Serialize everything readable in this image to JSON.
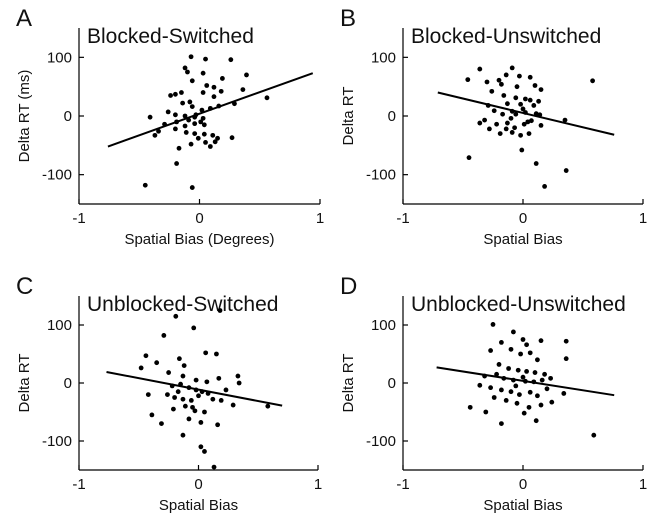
{
  "chart_data": [
    {
      "panel": "A",
      "type": "scatter",
      "title": "Blocked-Switched",
      "xlabel": "Spatial Bias (Degrees)",
      "ylabel": "Delta RT  (ms)",
      "xlim": [
        -1,
        1
      ],
      "ylim": [
        -150,
        150
      ],
      "xticks": [
        "-1",
        "0",
        "1"
      ],
      "yticks": [
        "-100",
        "0",
        "100"
      ],
      "points": [
        [
          -0.45,
          -118
        ],
        [
          -0.06,
          -122
        ],
        [
          -0.07,
          101
        ],
        [
          -0.12,
          82
        ],
        [
          -0.1,
          75
        ],
        [
          0.05,
          97
        ],
        [
          0.03,
          73
        ],
        [
          0.26,
          96
        ],
        [
          0.39,
          70
        ],
        [
          0.19,
          64
        ],
        [
          -0.06,
          60
        ],
        [
          -0.2,
          37
        ],
        [
          -0.24,
          35
        ],
        [
          -0.15,
          40
        ],
        [
          0.06,
          52
        ],
        [
          0.12,
          49
        ],
        [
          0.03,
          40
        ],
        [
          0.36,
          45
        ],
        [
          0.18,
          42
        ],
        [
          0.12,
          33
        ],
        [
          -0.08,
          24
        ],
        [
          -0.14,
          22
        ],
        [
          -0.06,
          16
        ],
        [
          0.02,
          10
        ],
        [
          0.09,
          13
        ],
        [
          0.29,
          21
        ],
        [
          0.16,
          17
        ],
        [
          0.56,
          31
        ],
        [
          -0.26,
          7
        ],
        [
          -0.2,
          2
        ],
        [
          -0.12,
          0
        ],
        [
          -0.04,
          -2
        ],
        [
          0.03,
          -4
        ],
        [
          -0.03,
          2
        ],
        [
          -0.29,
          -14
        ],
        [
          -0.37,
          -33
        ],
        [
          -0.19,
          -10
        ],
        [
          -0.09,
          -7
        ],
        [
          -0.04,
          -13
        ],
        [
          0.04,
          -15
        ],
        [
          -0.41,
          -2
        ],
        [
          -0.34,
          -26
        ],
        [
          -0.2,
          -22
        ],
        [
          -0.11,
          -28
        ],
        [
          -0.04,
          -30
        ],
        [
          0.04,
          -31
        ],
        [
          0.11,
          -33
        ],
        [
          0.13,
          -44
        ],
        [
          0.05,
          -45
        ],
        [
          0.09,
          -52
        ],
        [
          0.15,
          -38
        ],
        [
          0.27,
          -37
        ],
        [
          -0.01,
          -38
        ],
        [
          -0.07,
          -48
        ],
        [
          -0.17,
          -55
        ],
        [
          -0.19,
          -81
        ],
        [
          -0.12,
          -17
        ],
        [
          0.01,
          -10
        ]
      ],
      "fit_line": {
        "x": [
          -0.76,
          0.94
        ],
        "y": [
          -52,
          73
        ]
      }
    },
    {
      "panel": "B",
      "type": "scatter",
      "title": "Blocked-Unswitched",
      "xlabel": "Spatial Bias",
      "ylabel": "Delta RT",
      "xlim": [
        -1,
        1
      ],
      "ylim": [
        -150,
        150
      ],
      "xticks": [
        "-1",
        "0",
        "1"
      ],
      "yticks": [
        "-100",
        "0",
        "100"
      ],
      "points": [
        [
          -0.36,
          80
        ],
        [
          -0.46,
          62
        ],
        [
          -0.09,
          82
        ],
        [
          -0.14,
          70
        ],
        [
          -0.03,
          68
        ],
        [
          0.06,
          66
        ],
        [
          -0.2,
          61
        ],
        [
          -0.3,
          58
        ],
        [
          -0.18,
          54
        ],
        [
          -0.05,
          50
        ],
        [
          0.1,
          52
        ],
        [
          0.15,
          45
        ],
        [
          0.58,
          60
        ],
        [
          -0.26,
          42
        ],
        [
          -0.16,
          35
        ],
        [
          -0.06,
          31
        ],
        [
          0.02,
          29
        ],
        [
          0.06,
          27
        ],
        [
          0.13,
          25
        ],
        [
          -0.13,
          21
        ],
        [
          -0.29,
          18
        ],
        [
          -0.02,
          20
        ],
        [
          0.09,
          18
        ],
        [
          -0.24,
          9
        ],
        [
          -0.17,
          3
        ],
        [
          -0.09,
          8
        ],
        [
          0.02,
          6
        ],
        [
          0.11,
          4
        ],
        [
          0.14,
          2
        ],
        [
          -0.32,
          -7
        ],
        [
          -0.22,
          -14
        ],
        [
          -0.13,
          -12
        ],
        [
          -0.07,
          -20
        ],
        [
          0.01,
          -14
        ],
        [
          0.07,
          -8
        ],
        [
          0.15,
          -16
        ],
        [
          0.35,
          -7
        ],
        [
          -0.36,
          -12
        ],
        [
          -0.28,
          -22
        ],
        [
          -0.19,
          -30
        ],
        [
          -0.09,
          -28
        ],
        [
          -0.02,
          -33
        ],
        [
          0.05,
          -30
        ],
        [
          -0.14,
          -22
        ],
        [
          -0.45,
          -71
        ],
        [
          -0.01,
          -58
        ],
        [
          0.11,
          -81
        ],
        [
          0.18,
          -120
        ],
        [
          0.36,
          -93
        ],
        [
          0.04,
          -10
        ],
        [
          -0.06,
          3
        ],
        [
          0.0,
          12
        ],
        [
          -0.1,
          -4
        ]
      ],
      "fit_line": {
        "x": [
          -0.71,
          0.76
        ],
        "y": [
          40,
          -32
        ]
      }
    },
    {
      "panel": "C",
      "type": "scatter",
      "title": "Unblocked-Switched",
      "xlabel": "Spatial Bias",
      "ylabel": "Delta RT",
      "xlim": [
        -1,
        1
      ],
      "ylim": [
        -150,
        150
      ],
      "xticks": [
        "-1",
        "0",
        "1"
      ],
      "yticks": [
        "-100",
        "0",
        "100"
      ],
      "points": [
        [
          -0.19,
          115
        ],
        [
          0.18,
          125
        ],
        [
          -0.04,
          95
        ],
        [
          -0.29,
          82
        ],
        [
          -0.44,
          47
        ],
        [
          -0.35,
          35
        ],
        [
          -0.16,
          42
        ],
        [
          -0.12,
          30
        ],
        [
          0.06,
          52
        ],
        [
          0.15,
          50
        ],
        [
          -0.48,
          26
        ],
        [
          -0.25,
          18
        ],
        [
          -0.13,
          12
        ],
        [
          -0.02,
          5
        ],
        [
          0.07,
          2
        ],
        [
          0.17,
          8
        ],
        [
          0.33,
          12
        ],
        [
          0.34,
          0
        ],
        [
          -0.22,
          -5
        ],
        [
          -0.15,
          -2
        ],
        [
          -0.08,
          -8
        ],
        [
          -0.02,
          -12
        ],
        [
          0.03,
          -15
        ],
        [
          0.08,
          -18
        ],
        [
          -0.26,
          -20
        ],
        [
          -0.2,
          -25
        ],
        [
          -0.13,
          -28
        ],
        [
          -0.06,
          -30
        ],
        [
          0.0,
          -22
        ],
        [
          0.12,
          -28
        ],
        [
          0.19,
          -30
        ],
        [
          0.29,
          -38
        ],
        [
          0.58,
          -40
        ],
        [
          -0.21,
          -45
        ],
        [
          -0.11,
          -40
        ],
        [
          -0.03,
          -48
        ],
        [
          0.05,
          -50
        ],
        [
          -0.39,
          -55
        ],
        [
          -0.31,
          -70
        ],
        [
          -0.08,
          -62
        ],
        [
          0.02,
          -68
        ],
        [
          0.16,
          -72
        ],
        [
          -0.13,
          -90
        ],
        [
          0.02,
          -110
        ],
        [
          0.05,
          -118
        ],
        [
          0.13,
          -145
        ],
        [
          -0.42,
          -20
        ],
        [
          -0.17,
          -15
        ],
        [
          0.23,
          -12
        ],
        [
          -0.05,
          -42
        ]
      ],
      "fit_line": {
        "x": [
          -0.77,
          0.7
        ],
        "y": [
          19,
          -39
        ]
      }
    },
    {
      "panel": "D",
      "type": "scatter",
      "title": "Unblocked-Unswitched",
      "xlabel": "Spatial Bias",
      "ylabel": "Delta RT",
      "xlim": [
        -1,
        1
      ],
      "ylim": [
        -150,
        150
      ],
      "xticks": [
        "-1",
        "0",
        "1"
      ],
      "yticks": [
        "-100",
        "0",
        "100"
      ],
      "points": [
        [
          -0.25,
          101
        ],
        [
          -0.08,
          88
        ],
        [
          0.0,
          75
        ],
        [
          -0.18,
          70
        ],
        [
          0.03,
          66
        ],
        [
          0.15,
          73
        ],
        [
          0.36,
          72
        ],
        [
          -0.27,
          56
        ],
        [
          -0.1,
          58
        ],
        [
          -0.02,
          50
        ],
        [
          0.06,
          52
        ],
        [
          0.12,
          40
        ],
        [
          0.36,
          42
        ],
        [
          -0.2,
          32
        ],
        [
          -0.12,
          25
        ],
        [
          -0.04,
          22
        ],
        [
          0.03,
          20
        ],
        [
          0.1,
          18
        ],
        [
          0.18,
          15
        ],
        [
          -0.32,
          12
        ],
        [
          -0.16,
          8
        ],
        [
          -0.08,
          5
        ],
        [
          0.02,
          3
        ],
        [
          0.09,
          2
        ],
        [
          0.16,
          5
        ],
        [
          0.23,
          8
        ],
        [
          -0.36,
          -4
        ],
        [
          -0.27,
          -8
        ],
        [
          -0.18,
          -12
        ],
        [
          -0.1,
          -15
        ],
        [
          -0.03,
          -20
        ],
        [
          0.06,
          -16
        ],
        [
          0.12,
          -22
        ],
        [
          0.2,
          -10
        ],
        [
          0.34,
          -18
        ],
        [
          -0.24,
          -25
        ],
        [
          -0.14,
          -30
        ],
        [
          -0.05,
          -35
        ],
        [
          0.05,
          -42
        ],
        [
          0.15,
          -38
        ],
        [
          0.24,
          -33
        ],
        [
          -0.44,
          -42
        ],
        [
          -0.31,
          -50
        ],
        [
          -0.18,
          -70
        ],
        [
          0.01,
          -52
        ],
        [
          0.11,
          -65
        ],
        [
          0.59,
          -90
        ],
        [
          -0.06,
          -5
        ],
        [
          0.0,
          10
        ],
        [
          -0.22,
          15
        ]
      ],
      "fit_line": {
        "x": [
          -0.72,
          0.76
        ],
        "y": [
          27,
          -21
        ]
      }
    }
  ]
}
